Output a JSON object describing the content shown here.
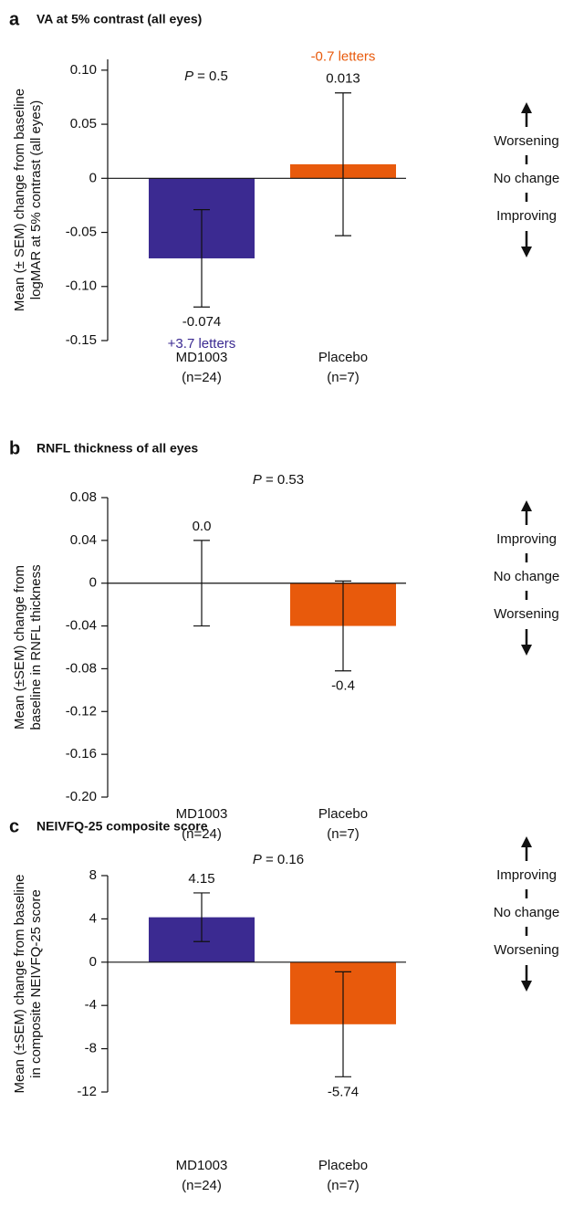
{
  "chart_data": [
    {
      "type": "bar",
      "panel": "a",
      "title": "VA at 5% contrast (all eyes)",
      "y_label": [
        "Mean (± SEM) change from baseline",
        "logMAR at 5% contrast (all eyes)"
      ],
      "categories": [
        "MD1003",
        "Placebo"
      ],
      "category_counts": [
        "(n=24)",
        "(n=7)"
      ],
      "values": [
        -0.074,
        0.013
      ],
      "errors": [
        0.045,
        0.066
      ],
      "colors": [
        "#3b2a91",
        "#e85a0c"
      ],
      "letters": [
        "+3.7 letters",
        "-0.7 letters"
      ],
      "p_symbol": "P",
      "p_text": "= 0.5",
      "direction_labels": [
        "Worsening",
        "No change",
        "Improving"
      ],
      "ylim": [
        -0.15,
        0.11
      ],
      "yticks": [
        {
          "value": 0.1,
          "label": "0.10"
        },
        {
          "value": 0.05,
          "label": "0.05"
        },
        0,
        {
          "value": -0.05,
          "label": "-0.05"
        },
        {
          "value": -0.1,
          "label": "-0.10"
        },
        {
          "value": -0.15,
          "label": "-0.15"
        }
      ]
    },
    {
      "type": "bar",
      "panel": "b",
      "title": "RNFL thickness of all eyes",
      "y_label": [
        "Mean (±SEM) change from",
        "baseline in RNFL thickness"
      ],
      "categories": [
        "MD1003",
        "Placebo"
      ],
      "category_counts": [
        "(n=24)",
        "(n=7)"
      ],
      "values": [
        0,
        -0.04
      ],
      "errors": [
        0.04,
        0.042
      ],
      "colors": [
        "#3b2a91",
        "#e85a0c"
      ],
      "notes": [
        "0.0",
        "-0.4"
      ],
      "p_symbol": "P",
      "p_text": "= 0.53",
      "direction_labels": [
        "Improving",
        "No change",
        "Worsening"
      ],
      "ylim": [
        -0.2,
        0.08
      ],
      "yticks": [
        {
          "value": 0.08,
          "label": "0.08"
        },
        {
          "value": 0.04,
          "label": "0.04"
        },
        0,
        {
          "value": -0.04,
          "label": "-0.04"
        },
        {
          "value": -0.08,
          "label": "-0.08"
        },
        {
          "value": -0.12,
          "label": "-0.12"
        },
        {
          "value": -0.16,
          "label": "-0.16"
        },
        {
          "value": -0.2,
          "label": "-0.20"
        }
      ]
    },
    {
      "type": "bar",
      "panel": "c",
      "title": "NEIVFQ-25 composite score",
      "y_label": [
        "Mean (±SEM) change from baseline",
        "in composite NEIVFQ-25 score"
      ],
      "categories": [
        "MD1003",
        "Placebo"
      ],
      "category_counts": [
        "(n=24)",
        "(n=7)"
      ],
      "values": [
        4.15,
        -5.74
      ],
      "errors": [
        2.25,
        4.85
      ],
      "colors": [
        "#3b2a91",
        "#e85a0c"
      ],
      "p_symbol": "P",
      "p_text": "= 0.16",
      "direction_labels": [
        "Improving",
        "No change",
        "Worsening"
      ],
      "ylim": [
        -12,
        8
      ],
      "yticks": [
        8,
        4,
        0,
        -4,
        -8,
        -12
      ]
    }
  ]
}
